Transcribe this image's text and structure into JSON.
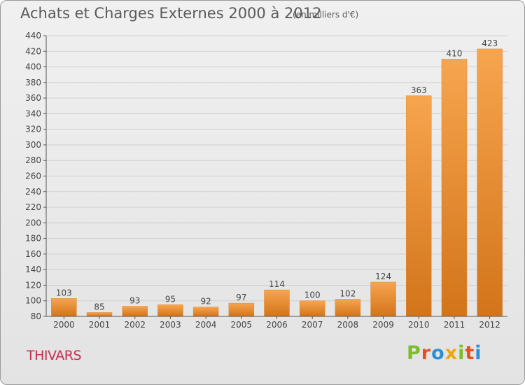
{
  "header": {
    "title": "Achats et Charges Externes 2000 à 2012",
    "subtitle": "(en milliers d'€)"
  },
  "footer": {
    "place": "THIVARS",
    "logo_text": "Proxiti"
  },
  "colors": {
    "bar_top": "#f7a54f",
    "bar_bottom": "#d2741a",
    "axis": "#555555",
    "grid": "#cfcfcf",
    "text": "#444444",
    "place": "#c72b51",
    "logo_letters": [
      "#7bbd2a",
      "#e8501b",
      "#2c8fd6",
      "#f0a510",
      "#7bbd2a",
      "#e8501b",
      "#2c8fd6"
    ]
  },
  "chart_data": {
    "type": "bar",
    "title": "Achats et Charges Externes 2000 à 2012",
    "subtitle": "(en milliers d'€)",
    "xlabel": "",
    "ylabel": "",
    "categories": [
      "2000",
      "2001",
      "2002",
      "2003",
      "2004",
      "2005",
      "2006",
      "2007",
      "2008",
      "2009",
      "2010",
      "2011",
      "2012"
    ],
    "values": [
      103,
      85,
      93,
      95,
      92,
      97,
      114,
      100,
      102,
      124,
      363,
      410,
      423
    ],
    "ylim": [
      80,
      440
    ],
    "yticks": [
      80,
      100,
      120,
      140,
      160,
      180,
      200,
      220,
      240,
      260,
      280,
      300,
      320,
      340,
      360,
      380,
      400,
      420,
      440
    ],
    "grid": true,
    "legend": "none"
  }
}
